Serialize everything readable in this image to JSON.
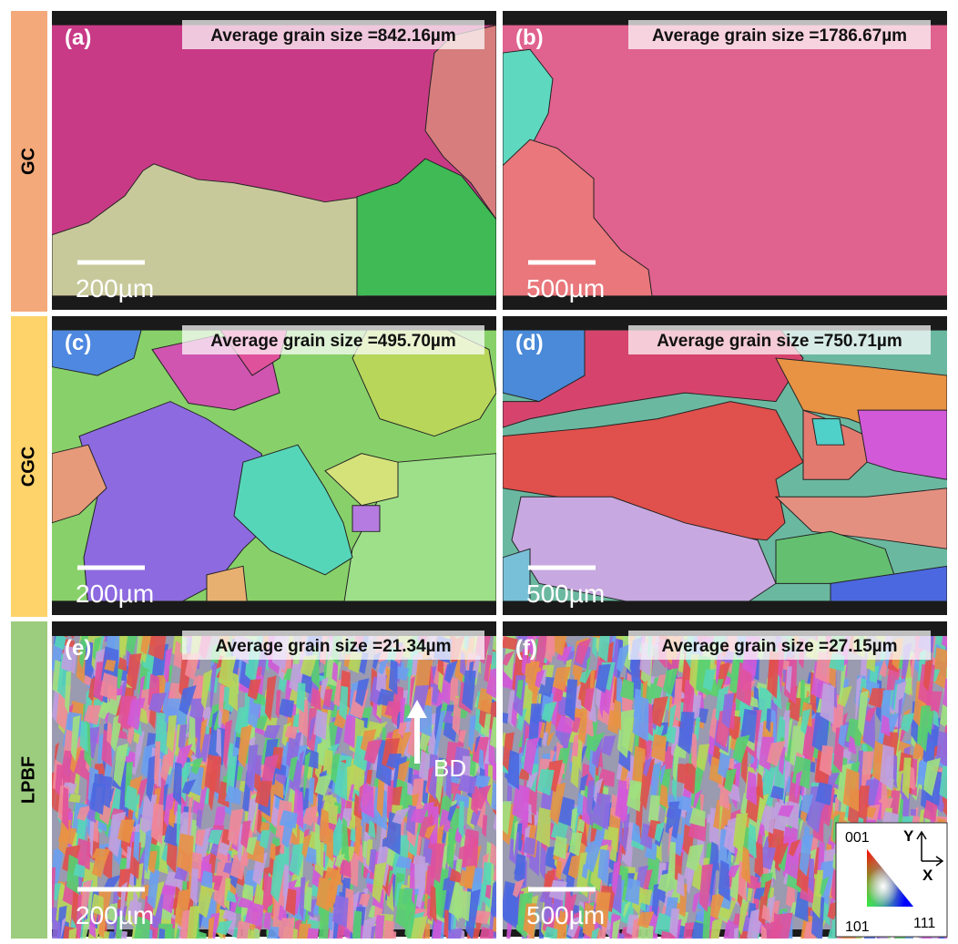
{
  "rows": [
    {
      "label": "GC",
      "panels": [
        {
          "tag": "(a)",
          "caption": "Average grain size =842.16µm",
          "scale": "200µm"
        },
        {
          "tag": "(b)",
          "caption": "Average grain size =1786.67µm",
          "scale": "500µm"
        }
      ]
    },
    {
      "label": "CGC",
      "panels": [
        {
          "tag": "(c)",
          "caption": "Average grain size =495.70µm",
          "scale": "200µm"
        },
        {
          "tag": "(d)",
          "caption": "Average grain size =750.71µm",
          "scale": "500µm"
        }
      ]
    },
    {
      "label": "LPBF",
      "panels": [
        {
          "tag": "(e)",
          "caption": "Average grain size =21.34µm",
          "scale": "200µm"
        },
        {
          "tag": "(f)",
          "caption": "Average grain size =27.15µm",
          "scale": "500µm"
        }
      ]
    }
  ],
  "annotation": "BD",
  "legend": {
    "corners": [
      "001",
      "101",
      "111"
    ],
    "axes": [
      "Y",
      "X"
    ]
  }
}
